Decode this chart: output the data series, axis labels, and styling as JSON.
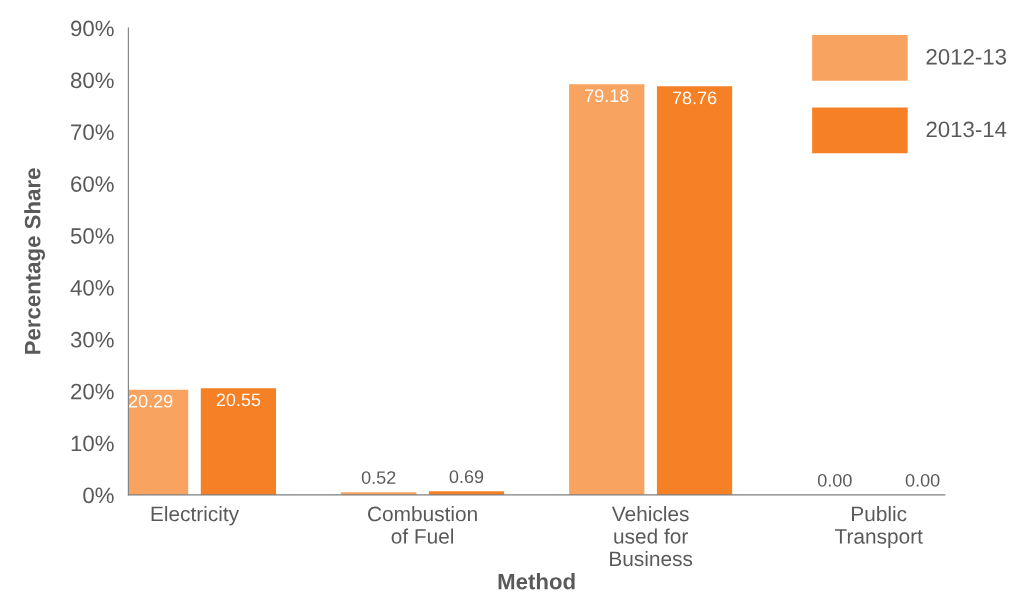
{
  "chart_data": {
    "type": "bar",
    "xlabel": "Method",
    "ylabel": "Percentage Share",
    "categories": [
      "Electricity",
      "Combustion of Fuel",
      "Vehicles used for Business",
      "Public Transport"
    ],
    "series": [
      {
        "name": "2012-13",
        "color": "#f9a360",
        "values": [
          20.29,
          0.52,
          79.18,
          0.0
        ]
      },
      {
        "name": "2013-14",
        "color": "#f58025",
        "values": [
          20.55,
          0.69,
          78.76,
          0.0
        ]
      }
    ],
    "ylim": [
      0,
      90
    ],
    "yticks": [
      {
        "value": 0,
        "label": "0%"
      },
      {
        "value": 10,
        "label": "10%"
      },
      {
        "value": 20,
        "label": "20%"
      },
      {
        "value": 30,
        "label": "30%"
      },
      {
        "value": 40,
        "label": "40%"
      },
      {
        "value": 50,
        "label": "50%"
      },
      {
        "value": 60,
        "label": "60%"
      },
      {
        "value": 70,
        "label": "70%"
      },
      {
        "value": 80,
        "label": "80%"
      },
      {
        "value": 90,
        "label": "90%"
      }
    ],
    "value_labels": [
      [
        "20.29",
        "0.52",
        "79.18",
        "0.00"
      ],
      [
        "20.55",
        "0.69",
        "78.76",
        "0.00"
      ]
    ],
    "grid": false,
    "legend": "top right"
  }
}
